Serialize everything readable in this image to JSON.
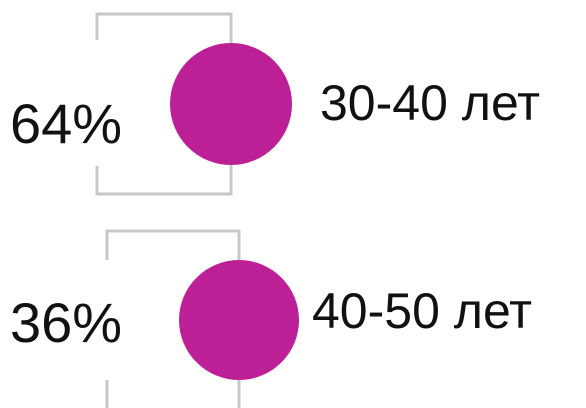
{
  "accent_color": "#bd1f97",
  "bracket_color": "#c8c8c8",
  "items": [
    {
      "percent": "64%",
      "age_group": "30-40 лет"
    },
    {
      "percent": "36%",
      "age_group": "40-50 лет"
    }
  ]
}
